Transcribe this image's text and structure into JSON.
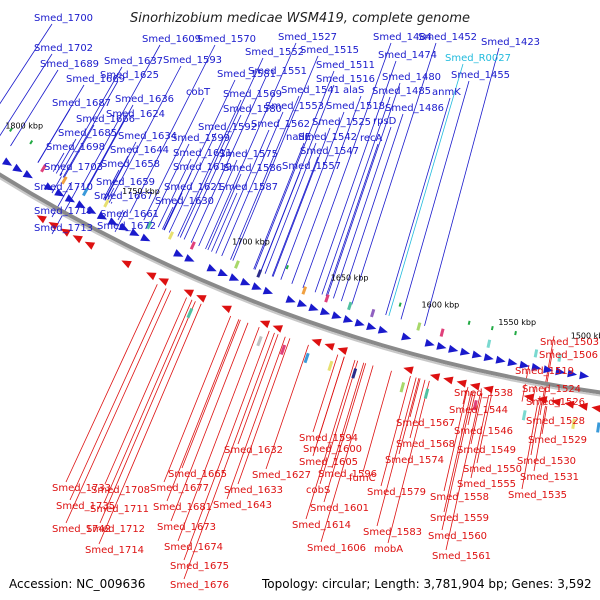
{
  "title": "Sinorhizobium medicae WSM419, complete genome",
  "footer": {
    "accession": "Accession: NC_009636",
    "summary": "Topology: circular; Length: 3,781,904 bp; Genes: 3,592"
  },
  "colors": {
    "forward": "#1a1acc",
    "reverse": "#dd1111",
    "rna": "#22bbdd",
    "backbone": "#8a8a8a"
  },
  "scale": [
    "1500 kbp",
    "1550 kbp",
    "1600 kbp",
    "1650 kbp",
    "1700 kbp",
    "1750 kbp",
    "1800 kbp"
  ],
  "forward_labels": [
    "Smed_1700",
    "Smed_1702",
    "Smed_1689",
    "Smed_1669",
    "Smed_1687",
    "Smed_1666",
    "Smed_1685",
    "Smed_1698",
    "Smed_1703",
    "Smed_1710",
    "Smed_1719",
    "Smed_1713",
    "Smed_1609",
    "Smed_1570",
    "Smed_1527",
    "Smed_1484",
    "Smed_1452",
    "Smed_1423",
    "Smed_1552",
    "Smed_1515",
    "Smed_1474",
    "Smed_R0027",
    "Smed_1637",
    "Smed_1593",
    "Smed_1511",
    "Smed_1455",
    "Smed_1625",
    "Smed_1581",
    "Smed_1551",
    "Smed_1516",
    "Smed_1480",
    "cobT",
    "Smed_1541",
    "alaS",
    "Smed_1485",
    "anmK",
    "Smed_1636",
    "Smed_1569",
    "Smed_1553",
    "Smed_1518",
    "Smed_1486",
    "Smed_1624",
    "Smed_1580",
    "Smed_1562",
    "Smed_1525",
    "rpsD",
    "Smed_1592",
    "nadE",
    "Smed_1542",
    "recA",
    "Smed_1634",
    "Smed_1599",
    "Smed_1547",
    "Smed_1644",
    "Smed_1611",
    "Smed_1575",
    "Smed_1557",
    "Smed_1658",
    "Smed_1619",
    "Smed_1586",
    "Smed_1659",
    "Smed_1621",
    "Smed_1587",
    "Smed_1667",
    "Smed_1630",
    "Smed_1661",
    "Smed_1672"
  ],
  "reverse_labels": [
    "Smed_1503",
    "Smed_1506",
    "Smed_1519",
    "Smed_1524",
    "Smed_1526",
    "Smed_1538",
    "Smed_1544",
    "Smed_1528",
    "Smed_1529",
    "Smed_1546",
    "Smed_1567",
    "Smed_1530",
    "Smed_1549",
    "Smed_1568",
    "Smed_1531",
    "Smed_1550",
    "Smed_1574",
    "Smed_1555",
    "Smed_1535",
    "Smed_1558",
    "Smed_1579",
    "Smed_1559",
    "Smed_1560",
    "Smed_1583",
    "mobA",
    "Smed_1561",
    "Smed_1594",
    "Smed_1600",
    "fumC",
    "Smed_1605",
    "Smed_1596",
    "cobS",
    "Smed_1601",
    "Smed_1614",
    "Smed_1606",
    "Smed_1632",
    "Smed_1627",
    "Smed_1633",
    "Smed_1643",
    "Smed_1665",
    "Smed_1677",
    "Smed_1681",
    "Smed_1673",
    "Smed_1674",
    "Smed_1675",
    "Smed_1676",
    "Smed_1733",
    "Smed_1708",
    "Smed_1735",
    "Smed_1711",
    "Smed_1742",
    "Smed_1712",
    "Smed_1714"
  ]
}
